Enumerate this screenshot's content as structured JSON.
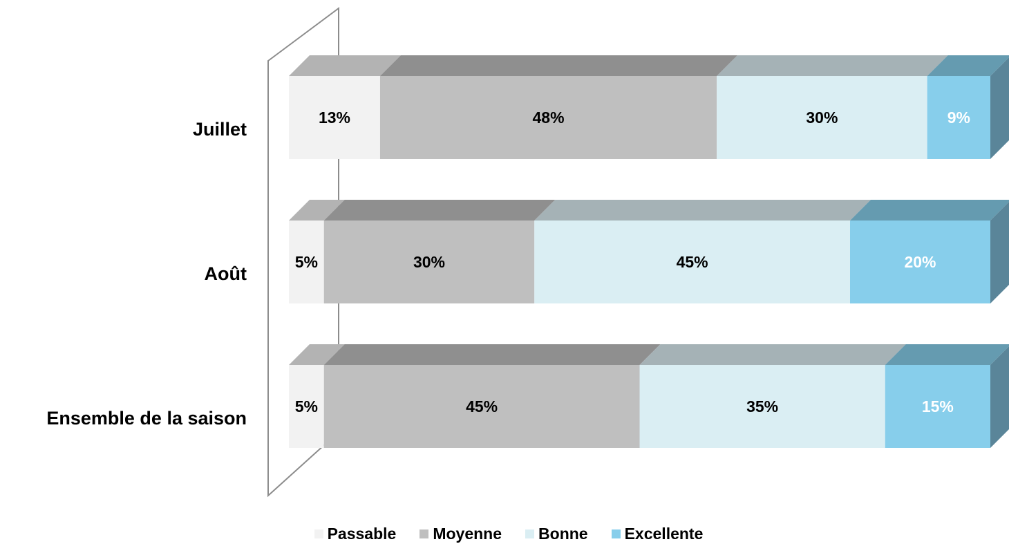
{
  "chart_data": {
    "type": "bar",
    "orientation": "horizontal",
    "stacked": "percent",
    "three_d": true,
    "categories": [
      "Juillet",
      "Août",
      "Ensemble de la saison"
    ],
    "series": [
      {
        "name": "Passable",
        "values": [
          13,
          5,
          5
        ],
        "labels": [
          "13%",
          "5%",
          "5%"
        ],
        "color": "#F2F2F2",
        "top_color": "#B3B3B3",
        "label_color": "#000000"
      },
      {
        "name": "Moyenne",
        "values": [
          48,
          30,
          45
        ],
        "labels": [
          "48%",
          "30%",
          "45%"
        ],
        "color": "#BFBFBF",
        "top_color": "#8F8F8F",
        "label_color": "#000000"
      },
      {
        "name": "Bonne",
        "values": [
          30,
          45,
          35
        ],
        "labels": [
          "30%",
          "45%",
          "35%"
        ],
        "color": "#DAEEF3",
        "top_color": "#A5B2B6",
        "label_color": "#000000"
      },
      {
        "name": "Excellente",
        "values": [
          9,
          20,
          15
        ],
        "labels": [
          "9%",
          "20%",
          "15%"
        ],
        "color": "#87CEEB",
        "top_color": "#659BB0",
        "side_color": "#5A8599",
        "label_color": "#FFFFFF"
      }
    ],
    "xlim": [
      0,
      100
    ],
    "grid": false,
    "legend": "bottom",
    "title": "",
    "xlabel": "",
    "ylabel": ""
  }
}
